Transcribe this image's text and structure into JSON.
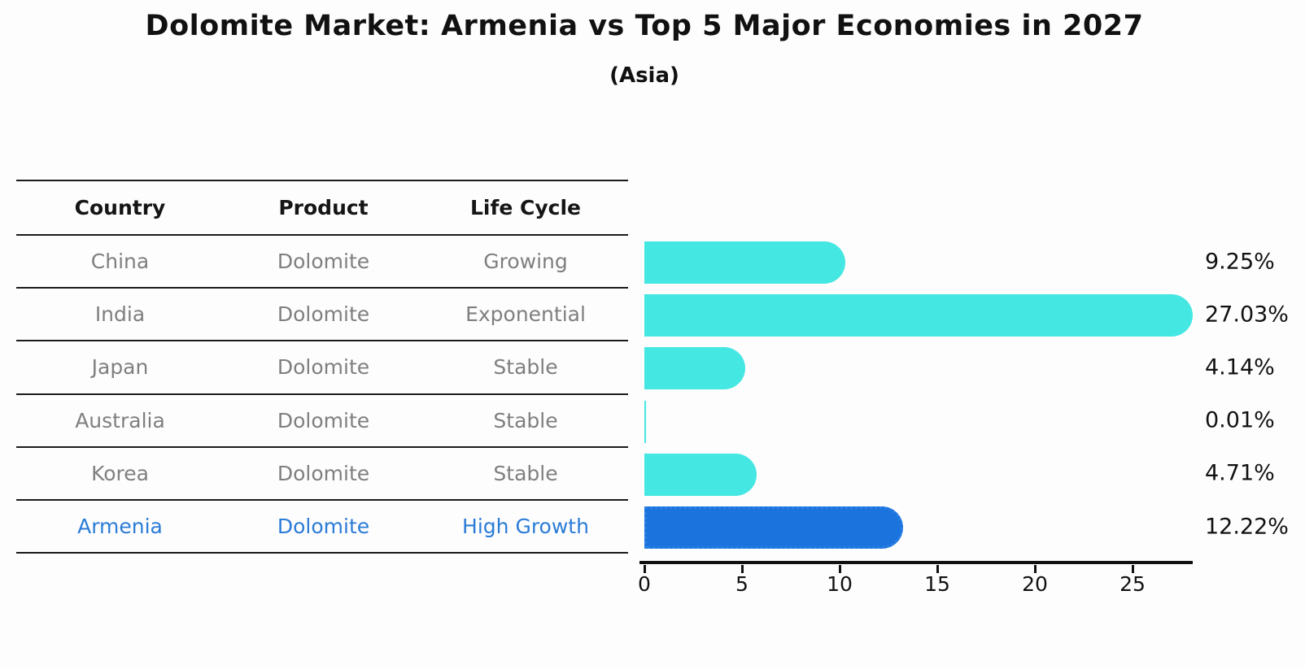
{
  "title": "Dolomite Market: Armenia vs Top 5 Major Economies in 2027",
  "subtitle": "(Asia)",
  "table": {
    "headers": [
      "Country",
      "Product",
      "Life Cycle"
    ],
    "rows": [
      {
        "country": "China",
        "product": "Dolomite",
        "life_cycle": "Growing",
        "value_label": "9.25%",
        "highlight": false
      },
      {
        "country": "India",
        "product": "Dolomite",
        "life_cycle": "Exponential",
        "value_label": "27.03%",
        "highlight": false
      },
      {
        "country": "Japan",
        "product": "Dolomite",
        "life_cycle": "Stable",
        "value_label": "4.14%",
        "highlight": false
      },
      {
        "country": "Australia",
        "product": "Dolomite",
        "life_cycle": "Stable",
        "value_label": "0.01%",
        "highlight": false
      },
      {
        "country": "Korea",
        "product": "Dolomite",
        "life_cycle": "Stable",
        "value_label": "4.71%",
        "highlight": false
      },
      {
        "country": "Armenia",
        "product": "Dolomite",
        "life_cycle": "High Growth",
        "value_label": "12.22%",
        "highlight": true
      }
    ]
  },
  "chart_data": {
    "type": "bar",
    "orientation": "horizontal",
    "title": "Dolomite Market: Armenia vs Top 5 Major Economies in 2027",
    "subtitle": "(Asia)",
    "categories": [
      "China",
      "India",
      "Japan",
      "Australia",
      "Korea",
      "Armenia"
    ],
    "values": [
      9.25,
      27.03,
      4.14,
      0.01,
      4.71,
      12.22
    ],
    "data_labels": [
      "9.25%",
      "27.03%",
      "4.14%",
      "0.01%",
      "4.71%",
      "12.22%"
    ],
    "highlight_category": "Armenia",
    "highlight_index": 5,
    "xlabel": "",
    "ylabel": "",
    "xlim": [
      0,
      28
    ],
    "xticks": [
      0,
      5,
      10,
      15,
      20,
      25
    ],
    "grid": false,
    "legend": false
  },
  "colors": {
    "bar": "#45E7E2",
    "highlight_bar": "#1B74DD",
    "highlight_bar_border": "#2B80E4",
    "row_text": "#7F7F7F",
    "highlight_text": "#2B7CD6",
    "header_text": "#151515",
    "table_line": "#1B1B1B",
    "axis": "#111111"
  }
}
